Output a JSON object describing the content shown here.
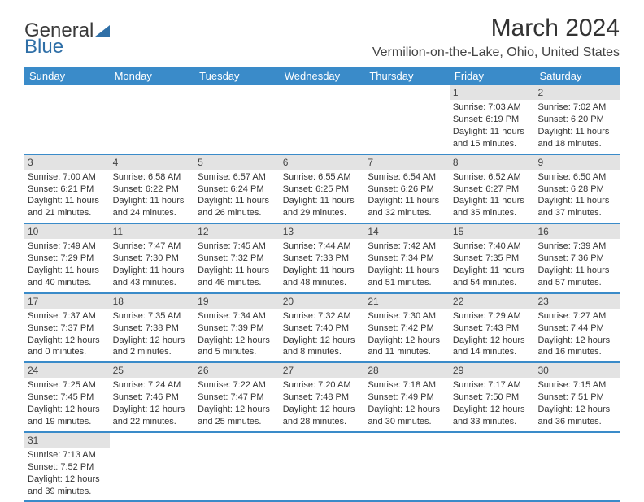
{
  "logo": {
    "text1": "General",
    "text2": "Blue"
  },
  "title": "March 2024",
  "location": "Vermilion-on-the-Lake, Ohio, United States",
  "weekdays": [
    "Sunday",
    "Monday",
    "Tuesday",
    "Wednesday",
    "Thursday",
    "Friday",
    "Saturday"
  ],
  "colors": {
    "header_bg": "#3a8bc9",
    "header_text": "#ffffff",
    "daynum_bg": "#e3e3e3",
    "row_border": "#3a8bc9",
    "logo_blue": "#2f6fa7"
  },
  "weeks": [
    [
      null,
      null,
      null,
      null,
      null,
      {
        "n": "1",
        "sunrise": "Sunrise: 7:03 AM",
        "sunset": "Sunset: 6:19 PM",
        "daylight": "Daylight: 11 hours and 15 minutes."
      },
      {
        "n": "2",
        "sunrise": "Sunrise: 7:02 AM",
        "sunset": "Sunset: 6:20 PM",
        "daylight": "Daylight: 11 hours and 18 minutes."
      }
    ],
    [
      {
        "n": "3",
        "sunrise": "Sunrise: 7:00 AM",
        "sunset": "Sunset: 6:21 PM",
        "daylight": "Daylight: 11 hours and 21 minutes."
      },
      {
        "n": "4",
        "sunrise": "Sunrise: 6:58 AM",
        "sunset": "Sunset: 6:22 PM",
        "daylight": "Daylight: 11 hours and 24 minutes."
      },
      {
        "n": "5",
        "sunrise": "Sunrise: 6:57 AM",
        "sunset": "Sunset: 6:24 PM",
        "daylight": "Daylight: 11 hours and 26 minutes."
      },
      {
        "n": "6",
        "sunrise": "Sunrise: 6:55 AM",
        "sunset": "Sunset: 6:25 PM",
        "daylight": "Daylight: 11 hours and 29 minutes."
      },
      {
        "n": "7",
        "sunrise": "Sunrise: 6:54 AM",
        "sunset": "Sunset: 6:26 PM",
        "daylight": "Daylight: 11 hours and 32 minutes."
      },
      {
        "n": "8",
        "sunrise": "Sunrise: 6:52 AM",
        "sunset": "Sunset: 6:27 PM",
        "daylight": "Daylight: 11 hours and 35 minutes."
      },
      {
        "n": "9",
        "sunrise": "Sunrise: 6:50 AM",
        "sunset": "Sunset: 6:28 PM",
        "daylight": "Daylight: 11 hours and 37 minutes."
      }
    ],
    [
      {
        "n": "10",
        "sunrise": "Sunrise: 7:49 AM",
        "sunset": "Sunset: 7:29 PM",
        "daylight": "Daylight: 11 hours and 40 minutes."
      },
      {
        "n": "11",
        "sunrise": "Sunrise: 7:47 AM",
        "sunset": "Sunset: 7:30 PM",
        "daylight": "Daylight: 11 hours and 43 minutes."
      },
      {
        "n": "12",
        "sunrise": "Sunrise: 7:45 AM",
        "sunset": "Sunset: 7:32 PM",
        "daylight": "Daylight: 11 hours and 46 minutes."
      },
      {
        "n": "13",
        "sunrise": "Sunrise: 7:44 AM",
        "sunset": "Sunset: 7:33 PM",
        "daylight": "Daylight: 11 hours and 48 minutes."
      },
      {
        "n": "14",
        "sunrise": "Sunrise: 7:42 AM",
        "sunset": "Sunset: 7:34 PM",
        "daylight": "Daylight: 11 hours and 51 minutes."
      },
      {
        "n": "15",
        "sunrise": "Sunrise: 7:40 AM",
        "sunset": "Sunset: 7:35 PM",
        "daylight": "Daylight: 11 hours and 54 minutes."
      },
      {
        "n": "16",
        "sunrise": "Sunrise: 7:39 AM",
        "sunset": "Sunset: 7:36 PM",
        "daylight": "Daylight: 11 hours and 57 minutes."
      }
    ],
    [
      {
        "n": "17",
        "sunrise": "Sunrise: 7:37 AM",
        "sunset": "Sunset: 7:37 PM",
        "daylight": "Daylight: 12 hours and 0 minutes."
      },
      {
        "n": "18",
        "sunrise": "Sunrise: 7:35 AM",
        "sunset": "Sunset: 7:38 PM",
        "daylight": "Daylight: 12 hours and 2 minutes."
      },
      {
        "n": "19",
        "sunrise": "Sunrise: 7:34 AM",
        "sunset": "Sunset: 7:39 PM",
        "daylight": "Daylight: 12 hours and 5 minutes."
      },
      {
        "n": "20",
        "sunrise": "Sunrise: 7:32 AM",
        "sunset": "Sunset: 7:40 PM",
        "daylight": "Daylight: 12 hours and 8 minutes."
      },
      {
        "n": "21",
        "sunrise": "Sunrise: 7:30 AM",
        "sunset": "Sunset: 7:42 PM",
        "daylight": "Daylight: 12 hours and 11 minutes."
      },
      {
        "n": "22",
        "sunrise": "Sunrise: 7:29 AM",
        "sunset": "Sunset: 7:43 PM",
        "daylight": "Daylight: 12 hours and 14 minutes."
      },
      {
        "n": "23",
        "sunrise": "Sunrise: 7:27 AM",
        "sunset": "Sunset: 7:44 PM",
        "daylight": "Daylight: 12 hours and 16 minutes."
      }
    ],
    [
      {
        "n": "24",
        "sunrise": "Sunrise: 7:25 AM",
        "sunset": "Sunset: 7:45 PM",
        "daylight": "Daylight: 12 hours and 19 minutes."
      },
      {
        "n": "25",
        "sunrise": "Sunrise: 7:24 AM",
        "sunset": "Sunset: 7:46 PM",
        "daylight": "Daylight: 12 hours and 22 minutes."
      },
      {
        "n": "26",
        "sunrise": "Sunrise: 7:22 AM",
        "sunset": "Sunset: 7:47 PM",
        "daylight": "Daylight: 12 hours and 25 minutes."
      },
      {
        "n": "27",
        "sunrise": "Sunrise: 7:20 AM",
        "sunset": "Sunset: 7:48 PM",
        "daylight": "Daylight: 12 hours and 28 minutes."
      },
      {
        "n": "28",
        "sunrise": "Sunrise: 7:18 AM",
        "sunset": "Sunset: 7:49 PM",
        "daylight": "Daylight: 12 hours and 30 minutes."
      },
      {
        "n": "29",
        "sunrise": "Sunrise: 7:17 AM",
        "sunset": "Sunset: 7:50 PM",
        "daylight": "Daylight: 12 hours and 33 minutes."
      },
      {
        "n": "30",
        "sunrise": "Sunrise: 7:15 AM",
        "sunset": "Sunset: 7:51 PM",
        "daylight": "Daylight: 12 hours and 36 minutes."
      }
    ],
    [
      {
        "n": "31",
        "sunrise": "Sunrise: 7:13 AM",
        "sunset": "Sunset: 7:52 PM",
        "daylight": "Daylight: 12 hours and 39 minutes."
      },
      null,
      null,
      null,
      null,
      null,
      null
    ]
  ]
}
